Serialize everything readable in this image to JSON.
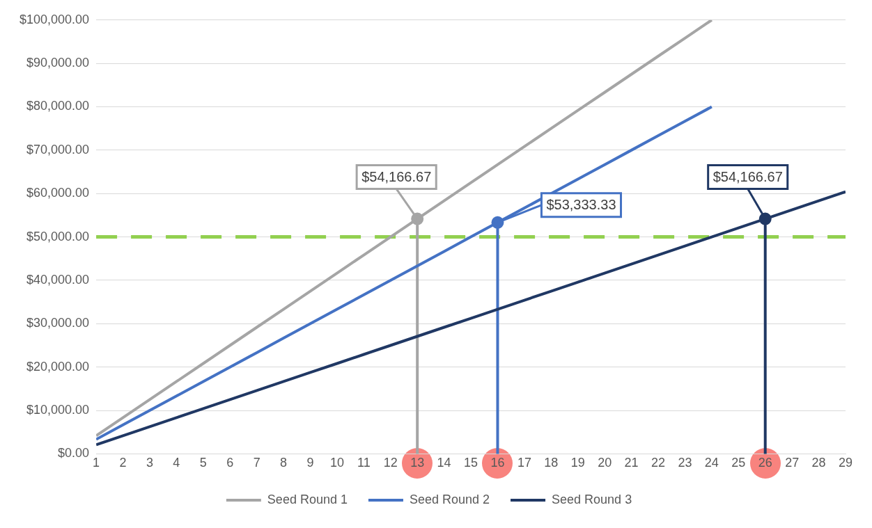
{
  "chart_data": {
    "type": "line",
    "x": [
      1,
      2,
      3,
      4,
      5,
      6,
      7,
      8,
      9,
      10,
      11,
      12,
      13,
      14,
      15,
      16,
      17,
      18,
      19,
      20,
      21,
      22,
      23,
      24,
      25,
      26,
      27,
      28,
      29
    ],
    "series": [
      {
        "name": "Seed Round 1",
        "color": "#a5a5a5",
        "values": [
          4166.67,
          8333.33,
          12500,
          16666.67,
          20833.33,
          25000,
          29166.67,
          33333.33,
          37500,
          41666.67,
          45833.33,
          50000,
          54166.67,
          58333.33,
          62500,
          66666.67,
          70833.33,
          75000,
          79166.67,
          83333.33,
          87500,
          91666.67,
          95833.33,
          100000,
          null,
          null,
          null,
          null,
          null
        ],
        "value_labels": [
          null,
          null,
          null,
          null,
          null,
          null,
          null,
          null,
          null,
          null,
          null,
          null,
          "$54,166.67",
          null,
          null,
          null,
          null,
          null,
          null,
          null,
          null,
          null,
          null,
          null,
          null,
          null,
          null,
          null,
          null
        ]
      },
      {
        "name": "Seed Round 2",
        "color": "#4472c4",
        "values": [
          3333.33,
          6666.67,
          10000,
          13333.33,
          16666.67,
          20000,
          23333.33,
          26666.67,
          30000,
          33333.33,
          36666.67,
          40000,
          43333.33,
          46666.67,
          50000,
          53333.33,
          56666.67,
          60000,
          63333.33,
          66666.67,
          70000,
          73333.33,
          76666.67,
          80000,
          null,
          null,
          null,
          null,
          null
        ],
        "value_labels": [
          null,
          null,
          null,
          null,
          null,
          null,
          null,
          null,
          null,
          null,
          null,
          null,
          null,
          null,
          null,
          "$53,333.33",
          null,
          null,
          null,
          null,
          null,
          null,
          null,
          null,
          null,
          null,
          null,
          null,
          null
        ]
      },
      {
        "name": "Seed Round 3",
        "color": "#203864",
        "values": [
          2083.33,
          4166.67,
          6250,
          8333.33,
          10416.67,
          12500,
          14583.33,
          16666.67,
          18750,
          20833.33,
          22916.67,
          25000,
          27083.33,
          29166.67,
          31250,
          33333.33,
          35416.67,
          37500,
          39583.33,
          41666.67,
          43750,
          45833.33,
          47916.67,
          50000,
          52083.33,
          54166.67,
          56250,
          58333.33,
          60416.67
        ],
        "value_labels": [
          null,
          null,
          null,
          null,
          null,
          null,
          null,
          null,
          null,
          null,
          null,
          null,
          null,
          null,
          null,
          null,
          null,
          null,
          null,
          null,
          null,
          null,
          null,
          null,
          null,
          "$54,166.67",
          null,
          null,
          null
        ]
      }
    ],
    "xlim": [
      1,
      29
    ],
    "xticks": [
      1,
      2,
      3,
      4,
      5,
      6,
      7,
      8,
      9,
      10,
      11,
      12,
      13,
      14,
      15,
      16,
      17,
      18,
      19,
      20,
      21,
      22,
      23,
      24,
      25,
      26,
      27,
      28,
      29
    ],
    "ylim": [
      0,
      100000
    ],
    "yticks": [
      {
        "value": 0,
        "label": "$0.00"
      },
      {
        "value": 10000,
        "label": "$10,000.00"
      },
      {
        "value": 20000,
        "label": "$20,000.00"
      },
      {
        "value": 30000,
        "label": "$30,000.00"
      },
      {
        "value": 40000,
        "label": "$40,000.00"
      },
      {
        "value": 50000,
        "label": "$50,000.00"
      },
      {
        "value": 60000,
        "label": "$60,000.00"
      },
      {
        "value": 70000,
        "label": "$70,000.00"
      },
      {
        "value": 80000,
        "label": "$80,000.00"
      },
      {
        "value": 90000,
        "label": "$90,000.00"
      },
      {
        "value": 100000,
        "label": "$100,000.00"
      }
    ],
    "ref_lines": [
      {
        "axis": "y",
        "value": 50000,
        "color": "#92d050",
        "line_style": "dashed"
      },
      {
        "axis": "x",
        "value": 13,
        "color": "#a5a5a5",
        "line_style": "solid"
      },
      {
        "axis": "x",
        "value": 16,
        "color": "#4472c4",
        "line_style": "solid"
      },
      {
        "axis": "x",
        "value": 26,
        "color": "#203864",
        "line_style": "solid"
      }
    ],
    "grid": "y",
    "legend": "bottom"
  }
}
